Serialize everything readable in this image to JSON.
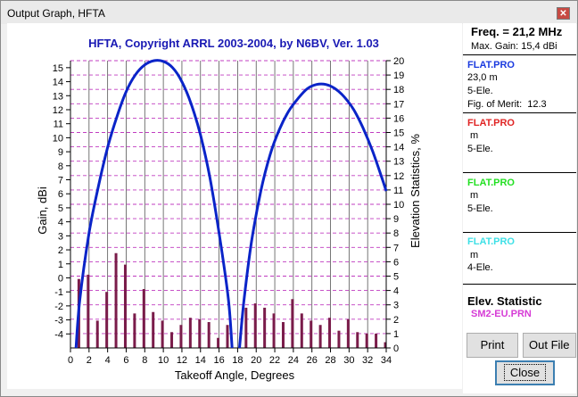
{
  "window": {
    "title": "Output Graph, HFTA",
    "close_glyph": "✕"
  },
  "chart_data": {
    "type": "line+bar",
    "title": "HFTA, Copyright ARRL 2003-2004, by N6BV, Ver. 1.03",
    "xlabel": "Takeoff Angle, Degrees",
    "ylabel_left": "Gain, dBi",
    "ylabel_right": "Elevation Statistics, %",
    "xlim": [
      0,
      34
    ],
    "ylim_left": [
      -5,
      15.5
    ],
    "ylim_right": [
      0,
      20
    ],
    "x_ticks": [
      0,
      2,
      4,
      6,
      8,
      10,
      12,
      14,
      16,
      18,
      20,
      22,
      24,
      26,
      28,
      30,
      32,
      34
    ],
    "y_left_ticks": [
      -4,
      -3,
      -2,
      -1,
      0,
      1,
      2,
      3,
      4,
      5,
      6,
      7,
      8,
      9,
      10,
      11,
      12,
      13,
      14,
      15
    ],
    "y_right_ticks": [
      0,
      1,
      2,
      3,
      4,
      5,
      6,
      7,
      8,
      9,
      10,
      11,
      12,
      13,
      14,
      15,
      16,
      17,
      18,
      19,
      20
    ],
    "gain_series": {
      "name": "FLAT.PRO",
      "color": "#0a24c8",
      "points": [
        [
          0.6,
          -5
        ],
        [
          1,
          -1.6
        ],
        [
          2,
          3.2
        ],
        [
          3,
          6.5
        ],
        [
          4,
          9.3
        ],
        [
          5,
          11.5
        ],
        [
          6,
          13.3
        ],
        [
          7,
          14.5
        ],
        [
          8,
          15.2
        ],
        [
          9,
          15.5
        ],
        [
          10,
          15.45
        ],
        [
          11,
          15.0
        ],
        [
          12,
          14.0
        ],
        [
          13,
          12.4
        ],
        [
          14,
          10.2
        ],
        [
          15,
          7.2
        ],
        [
          16,
          3.2
        ],
        [
          17,
          -1.5
        ],
        [
          17.4,
          -5
        ],
        [
          18.2,
          -5
        ],
        [
          18.7,
          -1.5
        ],
        [
          19.5,
          2.6
        ],
        [
          20.5,
          6.2
        ],
        [
          21.5,
          8.8
        ],
        [
          22.5,
          10.6
        ],
        [
          23.5,
          11.9
        ],
        [
          24.5,
          12.8
        ],
        [
          25.5,
          13.5
        ],
        [
          26.5,
          13.8
        ],
        [
          27.5,
          13.8
        ],
        [
          28.5,
          13.5
        ],
        [
          29.5,
          12.9
        ],
        [
          30.5,
          12.0
        ],
        [
          31.5,
          10.7
        ],
        [
          32.5,
          9.1
        ],
        [
          33.5,
          7.2
        ],
        [
          34,
          6.2
        ]
      ]
    },
    "elevation_bars": {
      "color": "#7a1c4a",
      "x": [
        1,
        2,
        3,
        4,
        5,
        6,
        7,
        8,
        9,
        10,
        11,
        12,
        13,
        14,
        15,
        16,
        17,
        18,
        19,
        20,
        21,
        22,
        23,
        24,
        25,
        26,
        27,
        28,
        29,
        30,
        31,
        32,
        33,
        34
      ],
      "values": [
        4.8,
        5.1,
        1.9,
        3.9,
        6.6,
        5.8,
        2.4,
        4.1,
        2.5,
        1.9,
        1.1,
        1.6,
        2.1,
        2.0,
        1.8,
        0.7,
        1.6,
        0,
        2.8,
        3.1,
        2.8,
        2.4,
        1.8,
        3.4,
        2.4,
        1.9,
        1.6,
        2.1,
        1.2,
        2.0,
        1.1,
        1.0,
        1.0,
        0.4
      ]
    }
  },
  "right_panel": {
    "freq": "Freq. = 21,2 MHz",
    "max_gain": "Max. Gain: 15,4 dBi",
    "antennas": [
      {
        "file": "FLAT.PRO",
        "color": "#1a3adf",
        "height": "23,0 m",
        "type": "5-Ele.",
        "merit": "Fig. of Merit:  12.3"
      },
      {
        "file": "FLAT.PRO",
        "color": "#e02424",
        "height": " m",
        "type": "5-Ele."
      },
      {
        "file": "FLAT.PRO",
        "color": "#22e022",
        "height": " m",
        "type": "5-Ele."
      },
      {
        "file": "FLAT.PRO",
        "color": "#3ee0e6",
        "height": " m",
        "type": "4-Ele."
      }
    ],
    "elev_title": "Elev. Statistic",
    "elev_file": "SM2-EU.PRN",
    "elev_file_color": "#d63cd6"
  },
  "buttons": {
    "print": "Print",
    "outfile": "Out File",
    "close": "Close"
  }
}
